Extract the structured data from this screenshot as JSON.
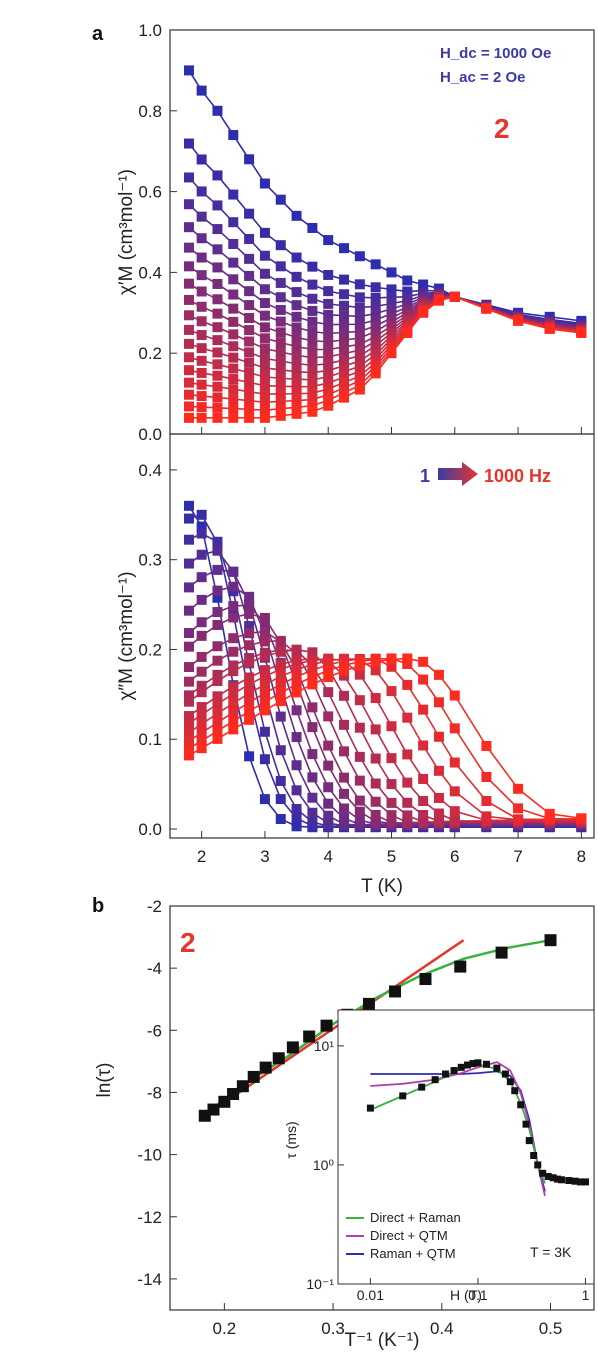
{
  "panel_a": {
    "letter": "a",
    "compound": "2",
    "condition_dc": "H_dc = 1000 Oe",
    "condition_ac": "H_ac = 2 Oe",
    "freq_from": "1",
    "freq_to": "1000 Hz"
  },
  "panel_b": {
    "letter": "b",
    "compound": "2",
    "inset_temperature": "T = 3K"
  },
  "chart_data": [
    {
      "type": "line",
      "ylabel": "χ′M (cm³mol⁻¹)",
      "xlabel": "",
      "xlim": [
        1.5,
        8.2
      ],
      "ylim": [
        0,
        1.0
      ],
      "x_ticks": [
        2,
        3,
        4,
        5,
        6,
        7,
        8
      ],
      "y_ticks": [
        0.0,
        0.2,
        0.4,
        0.6,
        0.8,
        1.0
      ],
      "series_color_from": "#2d2db0",
      "series_color_to": "#ff2b1f",
      "series_count": 18,
      "note_series": "18 ac frequencies from 1 Hz (blue) to 1000 Hz (red)",
      "low_freq_curve_x": [
        1.8,
        2.0,
        2.25,
        2.5,
        2.75,
        3.0,
        3.25,
        3.5,
        3.75,
        4.0,
        4.25,
        4.5,
        4.75,
        5.0,
        5.25,
        5.5,
        5.75,
        6.0,
        6.5,
        7.0,
        7.5,
        8.0
      ],
      "low_freq_curve_y": [
        0.9,
        0.85,
        0.8,
        0.74,
        0.68,
        0.62,
        0.58,
        0.54,
        0.51,
        0.48,
        0.46,
        0.44,
        0.42,
        0.4,
        0.38,
        0.37,
        0.36,
        0.34,
        0.32,
        0.3,
        0.29,
        0.28
      ],
      "high_freq_curve_y": [
        0.04,
        0.04,
        0.04,
        0.04,
        0.04,
        0.04,
        0.045,
        0.05,
        0.055,
        0.07,
        0.09,
        0.11,
        0.15,
        0.2,
        0.25,
        0.3,
        0.33,
        0.34,
        0.31,
        0.28,
        0.26,
        0.25
      ]
    },
    {
      "type": "line",
      "ylabel": "χ″M (cm³mol⁻¹)",
      "xlabel": "T (K)",
      "xlim": [
        1.5,
        8.2
      ],
      "ylim": [
        -0.01,
        0.44
      ],
      "x_ticks": [
        2,
        3,
        4,
        5,
        6,
        7,
        8
      ],
      "y_ticks": [
        0.0,
        0.1,
        0.2,
        0.3,
        0.4
      ],
      "series_count": 18,
      "x": [
        1.8,
        2.0,
        2.25,
        2.5,
        2.75,
        3.0,
        3.25,
        3.5,
        3.75,
        4.0,
        4.25,
        4.5,
        4.75,
        5.0,
        5.25,
        5.5,
        5.75,
        6.0,
        6.5,
        7.0,
        7.5,
        8.0
      ],
      "peak_temperatures": [
        1.8,
        2.0,
        2.1,
        2.25,
        2.4,
        2.55,
        2.7,
        2.85,
        3.0,
        3.2,
        3.4,
        3.6,
        3.85,
        4.1,
        4.4,
        4.7,
        5.0,
        5.3
      ],
      "peak_heights": [
        0.36,
        0.35,
        0.33,
        0.31,
        0.29,
        0.27,
        0.25,
        0.24,
        0.22,
        0.21,
        0.2,
        0.2,
        0.19,
        0.19,
        0.19,
        0.19,
        0.19,
        0.19
      ]
    },
    {
      "type": "scatter",
      "xlabel": "T⁻¹ (K⁻¹)",
      "ylabel": "ln(τ)",
      "xlim": [
        0.15,
        0.54
      ],
      "ylim": [
        -15,
        -2
      ],
      "x_ticks": [
        0.2,
        0.3,
        0.4,
        0.5
      ],
      "y_ticks": [
        -2,
        -4,
        -6,
        -8,
        -10,
        -12,
        -14
      ],
      "points_x": [
        0.182,
        0.19,
        0.2,
        0.208,
        0.217,
        0.227,
        0.238,
        0.25,
        0.263,
        0.278,
        0.294,
        0.313,
        0.333,
        0.357,
        0.385,
        0.417,
        0.455,
        0.5
      ],
      "points_y": [
        -8.75,
        -8.55,
        -8.3,
        -8.05,
        -7.8,
        -7.5,
        -7.2,
        -6.9,
        -6.55,
        -6.2,
        -5.85,
        -5.5,
        -5.15,
        -4.75,
        -4.35,
        -3.95,
        -3.5,
        -3.1
      ],
      "fit_line_x": [
        0.18,
        0.42
      ],
      "fit_line_y": [
        -8.8,
        -3.1
      ],
      "fit_curve_x": [
        0.18,
        0.22,
        0.26,
        0.3,
        0.34,
        0.38,
        0.42,
        0.46,
        0.5
      ],
      "fit_curve_y": [
        -8.75,
        -7.7,
        -6.8,
        -5.8,
        -4.95,
        -4.25,
        -3.7,
        -3.35,
        -3.1
      ],
      "fit_line_color": "#e8352c",
      "fit_curve_color": "#3cb043"
    },
    {
      "type": "scatter",
      "xlabel": "H (T)",
      "ylabel": "τ (ms)",
      "x_scale": "log",
      "y_scale": "log",
      "xlim": [
        0.005,
        1.2
      ],
      "ylim": [
        0.1,
        20
      ],
      "x_ticks": [
        "0.01",
        "0.1",
        "1"
      ],
      "y_ticks": [
        "10⁻¹",
        "10⁰",
        "10¹"
      ],
      "points_x": [
        0.01,
        0.02,
        0.03,
        0.04,
        0.05,
        0.06,
        0.07,
        0.08,
        0.09,
        0.1,
        0.12,
        0.15,
        0.18,
        0.2,
        0.22,
        0.25,
        0.28,
        0.3,
        0.33,
        0.36,
        0.4,
        0.45,
        0.5,
        0.55,
        0.6,
        0.7,
        0.8,
        0.9,
        1.0
      ],
      "points_y": [
        3.0,
        3.8,
        4.5,
        5.2,
        5.8,
        6.2,
        6.6,
        6.9,
        7.1,
        7.2,
        7.0,
        6.5,
        5.8,
        5.0,
        4.2,
        3.2,
        2.2,
        1.6,
        1.2,
        1.0,
        0.85,
        0.8,
        0.78,
        0.76,
        0.75,
        0.74,
        0.73,
        0.72,
        0.72
      ],
      "legend": [
        {
          "label": "Direct + Raman",
          "color": "#3cb043"
        },
        {
          "label": "Direct + QTM",
          "color": "#b040b0"
        },
        {
          "label": "Raman + QTM",
          "color": "#2d2db0"
        }
      ]
    }
  ]
}
